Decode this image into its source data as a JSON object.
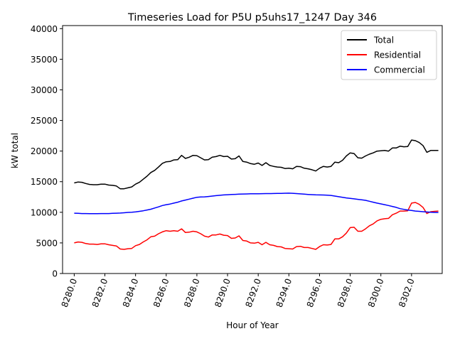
{
  "chart_data": {
    "type": "line",
    "title": "Timeseries Load for P5U p5uhs17_1247  Day 346",
    "xlabel": "Hour of Year",
    "ylabel": "kW total",
    "xlim": [
      8279.24,
      8304.0
    ],
    "ylim": [
      0,
      40500
    ],
    "xticks": [
      8280,
      8282,
      8284,
      8286,
      8288,
      8290,
      8292,
      8294,
      8296,
      8298,
      8300,
      8302
    ],
    "xtick_labels": [
      "8280.0",
      "8282.0",
      "8284.0",
      "8286.0",
      "8288.0",
      "8290.0",
      "8292.0",
      "8294.0",
      "8296.0",
      "8298.0",
      "8300.0",
      "8302.0"
    ],
    "yticks": [
      0,
      5000,
      10000,
      15000,
      20000,
      25000,
      30000,
      35000,
      40000
    ],
    "ytick_labels": [
      "0",
      "5000",
      "10000",
      "15000",
      "20000",
      "25000",
      "30000",
      "35000",
      "40000"
    ],
    "grid": false,
    "legend_position": "top-right",
    "series": [
      {
        "name": "Total",
        "color": "#000000",
        "x": [
          8280.0,
          8280.25,
          8280.5,
          8280.75,
          8281.0,
          8281.25,
          8281.5,
          8281.75,
          8282.0,
          8282.25,
          8282.5,
          8282.75,
          8283.0,
          8283.25,
          8283.5,
          8283.75,
          8284.0,
          8284.25,
          8284.5,
          8284.75,
          8285.0,
          8285.25,
          8285.5,
          8285.75,
          8286.0,
          8286.25,
          8286.5,
          8286.75,
          8287.0,
          8287.25,
          8287.5,
          8287.75,
          8288.0,
          8288.25,
          8288.5,
          8288.75,
          8289.0,
          8289.25,
          8289.5,
          8289.75,
          8290.0,
          8290.25,
          8290.5,
          8290.75,
          8291.0,
          8291.25,
          8291.5,
          8291.75,
          8292.0,
          8292.25,
          8292.5,
          8292.75,
          8293.0,
          8293.25,
          8293.5,
          8293.75,
          8294.0,
          8294.25,
          8294.5,
          8294.75,
          8295.0,
          8295.25,
          8295.5,
          8295.75,
          8296.0,
          8296.25,
          8296.5,
          8296.75,
          8297.0,
          8297.25,
          8297.5,
          8297.75,
          8298.0,
          8298.25,
          8298.5,
          8298.75,
          8299.0,
          8299.25,
          8299.5,
          8299.75,
          8300.0,
          8300.25,
          8300.5,
          8300.75,
          8301.0,
          8301.25,
          8301.5,
          8301.75,
          8302.0,
          8302.25,
          8302.5,
          8302.75,
          8303.0,
          8303.25,
          8303.5,
          8303.75
        ],
        "y": [
          14800,
          14950,
          14900,
          14700,
          14550,
          14500,
          14500,
          14600,
          14600,
          14450,
          14400,
          14300,
          13850,
          13850,
          14000,
          14150,
          14600,
          14900,
          15400,
          15900,
          16500,
          16850,
          17400,
          18000,
          18250,
          18300,
          18550,
          18600,
          19300,
          18800,
          19000,
          19300,
          19250,
          18900,
          18550,
          18600,
          19000,
          19100,
          19300,
          19100,
          19150,
          18700,
          18750,
          19200,
          18300,
          18200,
          17950,
          17850,
          18050,
          17650,
          18100,
          17650,
          17500,
          17400,
          17350,
          17150,
          17200,
          17100,
          17500,
          17450,
          17200,
          17100,
          16950,
          16750,
          17200,
          17500,
          17400,
          17500,
          18200,
          18100,
          18500,
          19200,
          19700,
          19600,
          18900,
          18850,
          19200,
          19500,
          19700,
          20000,
          20050,
          20100,
          20000,
          20500,
          20500,
          20800,
          20700,
          20750,
          21800,
          21700,
          21400,
          20900,
          19800,
          20100,
          20100,
          20100
        ]
      },
      {
        "name": "Residential",
        "color": "#ff0000",
        "x": [
          8280.0,
          8280.25,
          8280.5,
          8280.75,
          8281.0,
          8281.25,
          8281.5,
          8281.75,
          8282.0,
          8282.25,
          8282.5,
          8282.75,
          8283.0,
          8283.25,
          8283.5,
          8283.75,
          8284.0,
          8284.25,
          8284.5,
          8284.75,
          8285.0,
          8285.25,
          8285.5,
          8285.75,
          8286.0,
          8286.25,
          8286.5,
          8286.75,
          8287.0,
          8287.25,
          8287.5,
          8287.75,
          8288.0,
          8288.25,
          8288.5,
          8288.75,
          8289.0,
          8289.25,
          8289.5,
          8289.75,
          8290.0,
          8290.25,
          8290.5,
          8290.75,
          8291.0,
          8291.25,
          8291.5,
          8291.75,
          8292.0,
          8292.25,
          8292.5,
          8292.75,
          8293.0,
          8293.25,
          8293.5,
          8293.75,
          8294.0,
          8294.25,
          8294.5,
          8294.75,
          8295.0,
          8295.25,
          8295.5,
          8295.75,
          8296.0,
          8296.25,
          8296.5,
          8296.75,
          8297.0,
          8297.25,
          8297.5,
          8297.75,
          8298.0,
          8298.25,
          8298.5,
          8298.75,
          8299.0,
          8299.25,
          8299.5,
          8299.75,
          8300.0,
          8300.25,
          8300.5,
          8300.75,
          8301.0,
          8301.25,
          8301.5,
          8301.75,
          8302.0,
          8302.25,
          8302.5,
          8302.75,
          8303.0,
          8303.25,
          8303.5,
          8303.75
        ],
        "y": [
          5000,
          5150,
          5100,
          4900,
          4800,
          4800,
          4750,
          4850,
          4850,
          4700,
          4600,
          4500,
          4000,
          3950,
          4050,
          4100,
          4550,
          4750,
          5150,
          5500,
          6000,
          6100,
          6500,
          6800,
          7000,
          6900,
          7000,
          6900,
          7300,
          6700,
          6750,
          6900,
          6800,
          6500,
          6100,
          5950,
          6300,
          6300,
          6450,
          6250,
          6200,
          5750,
          5800,
          6150,
          5400,
          5300,
          5000,
          4950,
          5100,
          4700,
          5100,
          4700,
          4600,
          4400,
          4350,
          4100,
          4050,
          4000,
          4400,
          4450,
          4250,
          4250,
          4100,
          3950,
          4400,
          4700,
          4650,
          4750,
          5650,
          5650,
          6000,
          6600,
          7500,
          7550,
          6900,
          6900,
          7300,
          7800,
          8100,
          8600,
          8850,
          8950,
          9000,
          9600,
          9850,
          10200,
          10200,
          10250,
          11500,
          11600,
          11300,
          10800,
          9800,
          10100,
          10150,
          10200
        ]
      },
      {
        "name": "Commercial",
        "color": "#0000ff",
        "x": [
          8280.0,
          8280.25,
          8280.5,
          8280.75,
          8281.0,
          8281.25,
          8281.5,
          8281.75,
          8282.0,
          8282.25,
          8282.5,
          8282.75,
          8283.0,
          8283.25,
          8283.5,
          8283.75,
          8284.0,
          8284.25,
          8284.5,
          8284.75,
          8285.0,
          8285.25,
          8285.5,
          8285.75,
          8286.0,
          8286.25,
          8286.5,
          8286.75,
          8287.0,
          8287.25,
          8287.5,
          8287.75,
          8288.0,
          8288.25,
          8288.5,
          8288.75,
          8289.0,
          8289.25,
          8289.5,
          8289.75,
          8290.0,
          8290.25,
          8290.5,
          8290.75,
          8291.0,
          8291.25,
          8291.5,
          8291.75,
          8292.0,
          8292.25,
          8292.5,
          8292.75,
          8293.0,
          8293.25,
          8293.5,
          8293.75,
          8294.0,
          8294.25,
          8294.5,
          8294.75,
          8295.0,
          8295.25,
          8295.5,
          8295.75,
          8296.0,
          8296.25,
          8296.5,
          8296.75,
          8297.0,
          8297.25,
          8297.5,
          8297.75,
          8298.0,
          8298.25,
          8298.5,
          8298.75,
          8299.0,
          8299.25,
          8299.5,
          8299.75,
          8300.0,
          8300.25,
          8300.5,
          8300.75,
          8301.0,
          8301.25,
          8301.5,
          8301.75,
          8302.0,
          8302.25,
          8302.5,
          8302.75,
          8303.0,
          8303.25,
          8303.5,
          8303.75
        ],
        "y": [
          9850,
          9830,
          9800,
          9790,
          9780,
          9770,
          9780,
          9790,
          9790,
          9800,
          9830,
          9850,
          9880,
          9920,
          9980,
          10020,
          10070,
          10150,
          10250,
          10370,
          10500,
          10700,
          10880,
          11100,
          11250,
          11350,
          11500,
          11650,
          11850,
          12000,
          12150,
          12300,
          12450,
          12500,
          12520,
          12580,
          12650,
          12720,
          12780,
          12830,
          12870,
          12900,
          12930,
          12960,
          12980,
          13000,
          13020,
          13030,
          13030,
          13040,
          13050,
          13060,
          13070,
          13080,
          13090,
          13110,
          13120,
          13100,
          13050,
          13010,
          12960,
          12920,
          12880,
          12850,
          12830,
          12820,
          12800,
          12750,
          12650,
          12550,
          12450,
          12350,
          12280,
          12200,
          12120,
          12050,
          11950,
          11800,
          11650,
          11500,
          11370,
          11250,
          11100,
          10950,
          10800,
          10600,
          10480,
          10380,
          10300,
          10200,
          10150,
          10100,
          10050,
          10000,
          9980,
          9970
        ]
      }
    ]
  }
}
